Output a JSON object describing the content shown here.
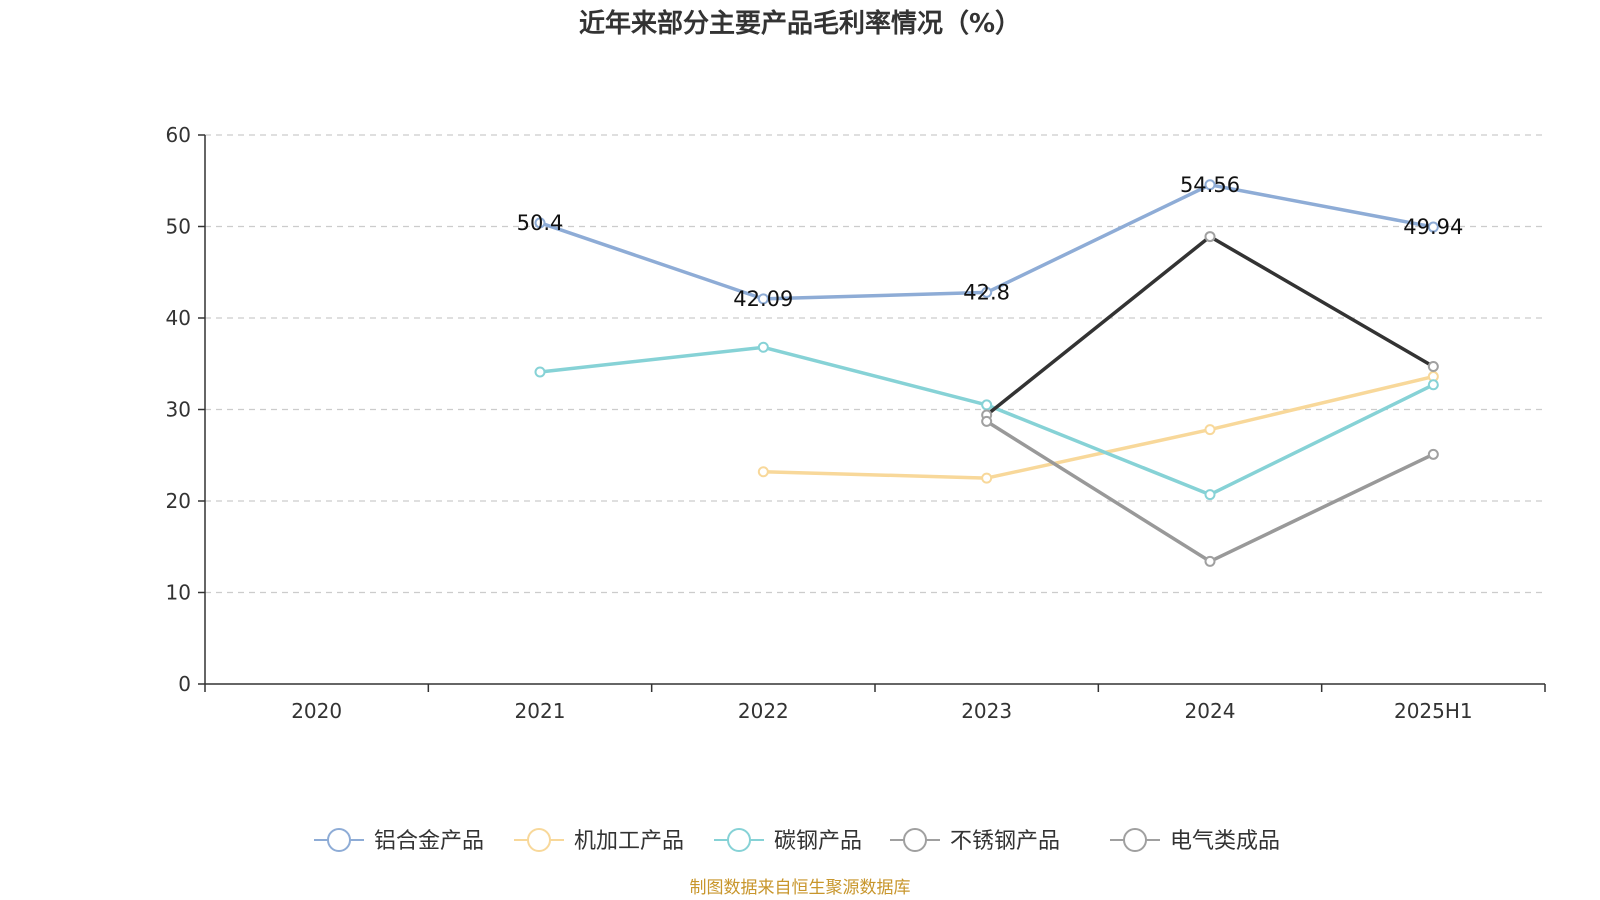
{
  "chart_data": {
    "type": "line",
    "title": "近年来部分主要产品毛利率情况（%）",
    "categories": [
      "2020",
      "2021",
      "2022",
      "2023",
      "2024",
      "2025H1"
    ],
    "ylim": [
      0,
      60
    ],
    "yticks": [
      0,
      10,
      20,
      30,
      40,
      50,
      60
    ],
    "grid": true,
    "legend_position": "bottom",
    "series": [
      {
        "name": "铝合金产品",
        "color": "#8eacd6",
        "values": [
          null,
          50.4,
          42.09,
          42.8,
          54.56,
          49.94
        ],
        "show_labels": true,
        "labels": [
          "",
          "50.4",
          "42.09",
          "42.8",
          "54.56",
          "49.94"
        ]
      },
      {
        "name": "机加工产品",
        "color": "#f8d89a",
        "values": [
          null,
          null,
          23.2,
          22.5,
          27.8,
          33.6
        ],
        "show_labels": false
      },
      {
        "name": "碳钢产品",
        "color": "#86d2d6",
        "values": [
          null,
          34.1,
          36.8,
          30.5,
          20.7,
          32.7
        ],
        "show_labels": false
      },
      {
        "name": "不锈钢产品",
        "color": "#a0a0a0",
        "line_color": "#333333",
        "values": [
          null,
          null,
          null,
          29.4,
          48.9,
          34.7
        ],
        "show_labels": false
      },
      {
        "name": "电气类成品",
        "color": "#a0a0a0",
        "line_color": "#999999",
        "values": [
          null,
          null,
          null,
          28.7,
          13.4,
          25.1
        ],
        "show_labels": false
      }
    ]
  },
  "footer": {
    "source": "制图数据来自恒生聚源数据库",
    "source_color": "#c8962c"
  }
}
